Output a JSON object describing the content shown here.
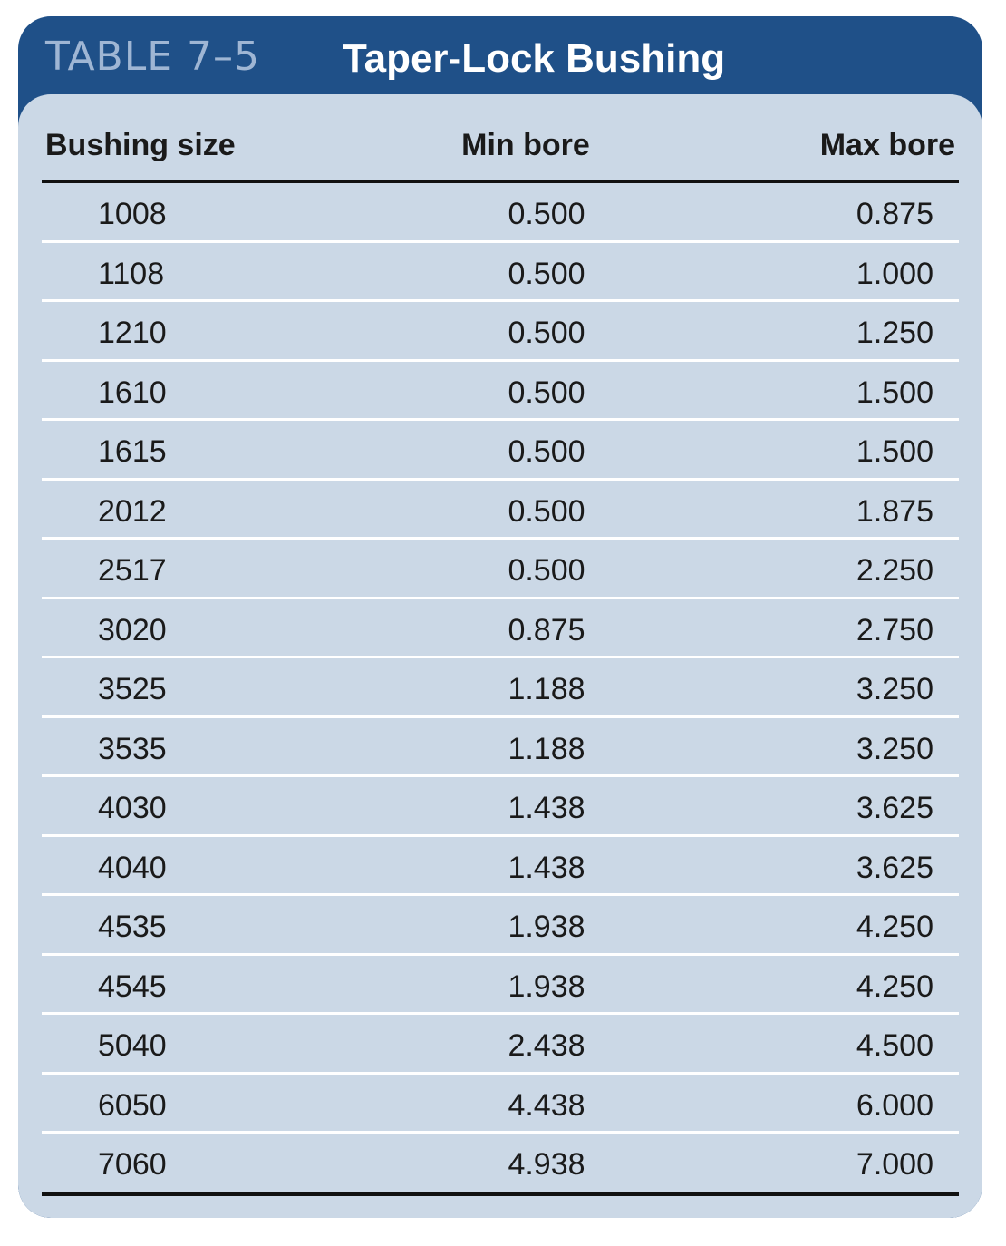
{
  "table": {
    "number": "TABLE 7–5",
    "title": "Taper-Lock Bushing",
    "headers": {
      "size": "Bushing size",
      "min": "Min bore",
      "max": "Max bore"
    },
    "rows": [
      {
        "size": "1008",
        "min": "0.500",
        "max": "0.875"
      },
      {
        "size": "1108",
        "min": "0.500",
        "max": "1.000"
      },
      {
        "size": "1210",
        "min": "0.500",
        "max": "1.250"
      },
      {
        "size": "1610",
        "min": "0.500",
        "max": "1.500"
      },
      {
        "size": "1615",
        "min": "0.500",
        "max": "1.500"
      },
      {
        "size": "2012",
        "min": "0.500",
        "max": "1.875"
      },
      {
        "size": "2517",
        "min": "0.500",
        "max": "2.250"
      },
      {
        "size": "3020",
        "min": "0.875",
        "max": "2.750"
      },
      {
        "size": "3525",
        "min": "1.188",
        "max": "3.250"
      },
      {
        "size": "3535",
        "min": "1.188",
        "max": "3.250"
      },
      {
        "size": "4030",
        "min": "1.438",
        "max": "3.625"
      },
      {
        "size": "4040",
        "min": "1.438",
        "max": "3.625"
      },
      {
        "size": "4535",
        "min": "1.938",
        "max": "4.250"
      },
      {
        "size": "4545",
        "min": "1.938",
        "max": "4.250"
      },
      {
        "size": "5040",
        "min": "2.438",
        "max": "4.500"
      },
      {
        "size": "6050",
        "min": "4.438",
        "max": "6.000"
      },
      {
        "size": "7060",
        "min": "4.938",
        "max": "7.000"
      }
    ]
  },
  "colors": {
    "header_band": "#1f5088",
    "table_number": "#9fb6d4",
    "panel": "#cbd8e6",
    "row_separator": "#ffffff",
    "rule": "#111111"
  }
}
